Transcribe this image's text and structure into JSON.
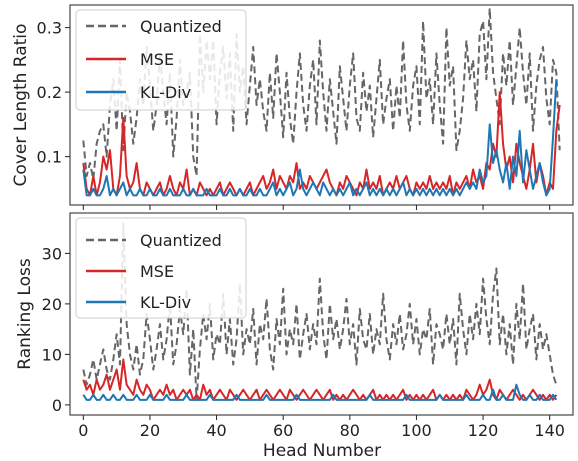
{
  "chart_data": [
    {
      "type": "line",
      "ylabel": "Cover Length Ratio",
      "xlabel": "",
      "xlim": [
        -4,
        147
      ],
      "ylim": [
        0.025,
        0.335
      ],
      "xticks": [
        0,
        20,
        40,
        60,
        80,
        100,
        120,
        140
      ],
      "xtick_labels": [
        "0",
        "20",
        "40",
        "60",
        "80",
        "100",
        "120",
        "140"
      ],
      "yticks": [
        0.1,
        0.2,
        0.3
      ],
      "ytick_labels": [
        "0.1",
        "0.2",
        "0.3"
      ],
      "legend_position": "upper-left",
      "series": [
        {
          "name": "Quantized",
          "color": "#666666",
          "style": "dashed",
          "values": [
            0.125,
            0.07,
            0.09,
            0.065,
            0.12,
            0.14,
            0.15,
            0.1,
            0.18,
            0.22,
            0.14,
            0.25,
            0.11,
            0.2,
            0.17,
            0.12,
            0.16,
            0.22,
            0.18,
            0.27,
            0.21,
            0.14,
            0.18,
            0.26,
            0.2,
            0.15,
            0.23,
            0.1,
            0.16,
            0.25,
            0.18,
            0.2,
            0.23,
            0.1,
            0.07,
            0.29,
            0.2,
            0.28,
            0.22,
            0.28,
            0.15,
            0.23,
            0.27,
            0.19,
            0.26,
            0.14,
            0.29,
            0.2,
            0.24,
            0.15,
            0.21,
            0.27,
            0.18,
            0.22,
            0.17,
            0.14,
            0.23,
            0.16,
            0.26,
            0.2,
            0.13,
            0.23,
            0.16,
            0.12,
            0.2,
            0.26,
            0.18,
            0.14,
            0.21,
            0.25,
            0.15,
            0.28,
            0.2,
            0.14,
            0.22,
            0.17,
            0.12,
            0.24,
            0.19,
            0.14,
            0.21,
            0.26,
            0.16,
            0.14,
            0.23,
            0.17,
            0.21,
            0.13,
            0.19,
            0.25,
            0.15,
            0.19,
            0.22,
            0.14,
            0.21,
            0.16,
            0.28,
            0.18,
            0.14,
            0.21,
            0.24,
            0.15,
            0.31,
            0.19,
            0.22,
            0.15,
            0.26,
            0.18,
            0.12,
            0.3,
            0.21,
            0.24,
            0.11,
            0.14,
            0.19,
            0.28,
            0.22,
            0.25,
            0.17,
            0.29,
            0.31,
            0.22,
            0.33,
            0.23,
            0.19,
            0.15,
            0.26,
            0.21,
            0.28,
            0.18,
            0.24,
            0.3,
            0.23,
            0.18,
            0.26,
            0.14,
            0.21,
            0.25,
            0.27,
            0.19,
            0.15,
            0.25,
            0.23,
            0.11
          ]
        },
        {
          "name": "MSE",
          "color": "#d62728",
          "style": "solid",
          "values": [
            0.09,
            0.05,
            0.04,
            0.07,
            0.04,
            0.06,
            0.1,
            0.08,
            0.11,
            0.05,
            0.04,
            0.07,
            0.16,
            0.07,
            0.05,
            0.06,
            0.09,
            0.05,
            0.04,
            0.06,
            0.05,
            0.04,
            0.05,
            0.06,
            0.04,
            0.05,
            0.07,
            0.05,
            0.04,
            0.06,
            0.05,
            0.08,
            0.04,
            0.05,
            0.04,
            0.06,
            0.05,
            0.04,
            0.05,
            0.04,
            0.05,
            0.06,
            0.04,
            0.05,
            0.06,
            0.05,
            0.04,
            0.05,
            0.04,
            0.05,
            0.06,
            0.04,
            0.05,
            0.06,
            0.07,
            0.05,
            0.06,
            0.08,
            0.05,
            0.07,
            0.06,
            0.05,
            0.07,
            0.06,
            0.09,
            0.05,
            0.06,
            0.05,
            0.07,
            0.06,
            0.05,
            0.06,
            0.07,
            0.08,
            0.06,
            0.05,
            0.04,
            0.06,
            0.05,
            0.07,
            0.06,
            0.05,
            0.04,
            0.06,
            0.05,
            0.08,
            0.05,
            0.06,
            0.05,
            0.07,
            0.04,
            0.05,
            0.06,
            0.05,
            0.07,
            0.05,
            0.06,
            0.07,
            0.05,
            0.04,
            0.06,
            0.05,
            0.06,
            0.05,
            0.07,
            0.05,
            0.06,
            0.05,
            0.06,
            0.05,
            0.07,
            0.04,
            0.06,
            0.05,
            0.06,
            0.07,
            0.05,
            0.08,
            0.06,
            0.07,
            0.05,
            0.09,
            0.08,
            0.12,
            0.1,
            0.2,
            0.12,
            0.08,
            0.1,
            0.06,
            0.12,
            0.09,
            0.07,
            0.05,
            0.08,
            0.12,
            0.06,
            0.09,
            0.07,
            0.04,
            0.06,
            0.05,
            0.14,
            0.18
          ]
        },
        {
          "name": "KL-Div",
          "color": "#1f77b4",
          "style": "solid",
          "values": [
            0.08,
            0.04,
            0.04,
            0.05,
            0.04,
            0.04,
            0.05,
            0.07,
            0.04,
            0.05,
            0.04,
            0.05,
            0.06,
            0.04,
            0.05,
            0.04,
            0.04,
            0.05,
            0.04,
            0.04,
            0.05,
            0.04,
            0.04,
            0.05,
            0.04,
            0.04,
            0.05,
            0.04,
            0.04,
            0.04,
            0.05,
            0.04,
            0.04,
            0.05,
            0.04,
            0.04,
            0.04,
            0.05,
            0.04,
            0.04,
            0.04,
            0.05,
            0.04,
            0.04,
            0.05,
            0.04,
            0.04,
            0.05,
            0.04,
            0.04,
            0.05,
            0.04,
            0.04,
            0.05,
            0.04,
            0.04,
            0.05,
            0.06,
            0.04,
            0.05,
            0.04,
            0.05,
            0.06,
            0.04,
            0.05,
            0.08,
            0.05,
            0.04,
            0.05,
            0.06,
            0.05,
            0.04,
            0.06,
            0.05,
            0.04,
            0.05,
            0.04,
            0.05,
            0.04,
            0.05,
            0.06,
            0.04,
            0.05,
            0.04,
            0.05,
            0.06,
            0.04,
            0.05,
            0.04,
            0.05,
            0.04,
            0.05,
            0.04,
            0.05,
            0.04,
            0.05,
            0.06,
            0.04,
            0.05,
            0.04,
            0.05,
            0.04,
            0.05,
            0.04,
            0.05,
            0.04,
            0.05,
            0.04,
            0.05,
            0.04,
            0.05,
            0.04,
            0.05,
            0.04,
            0.05,
            0.06,
            0.05,
            0.06,
            0.05,
            0.08,
            0.06,
            0.07,
            0.15,
            0.09,
            0.11,
            0.08,
            0.06,
            0.09,
            0.05,
            0.1,
            0.07,
            0.14,
            0.06,
            0.11,
            0.08,
            0.05,
            0.07,
            0.09,
            0.06,
            0.04,
            0.05,
            0.13,
            0.22
          ]
        }
      ]
    },
    {
      "type": "line",
      "ylabel": "Ranking Loss",
      "xlabel": "Head Number",
      "xlim": [
        -4,
        147
      ],
      "ylim": [
        -2,
        38
      ],
      "xticks": [
        0,
        20,
        40,
        60,
        80,
        100,
        120,
        140
      ],
      "xtick_labels": [
        "0",
        "20",
        "40",
        "60",
        "80",
        "100",
        "120",
        "140"
      ],
      "yticks": [
        0,
        10,
        20,
        30
      ],
      "ytick_labels": [
        "0",
        "10",
        "20",
        "30"
      ],
      "legend_position": "upper-left",
      "series": [
        {
          "name": "Quantized",
          "color": "#666666",
          "style": "dashed",
          "values": [
            7,
            4,
            6,
            9,
            5,
            8,
            11,
            7,
            5,
            9,
            14,
            8,
            36,
            16,
            10,
            7,
            12,
            6,
            9,
            18,
            13,
            7,
            11,
            16,
            9,
            13,
            20,
            8,
            12,
            19,
            14,
            23,
            6,
            15,
            1,
            11,
            18,
            13,
            20,
            9,
            14,
            12,
            22,
            10,
            17,
            8,
            13,
            24,
            10,
            15,
            12,
            19,
            8,
            16,
            13,
            21,
            11,
            7,
            17,
            12,
            23,
            10,
            15,
            12,
            20,
            9,
            14,
            18,
            11,
            16,
            12,
            25,
            14,
            9,
            20,
            13,
            17,
            11,
            15,
            21,
            12,
            16,
            8,
            19,
            13,
            11,
            18,
            10,
            15,
            12,
            22,
            13,
            9,
            16,
            12,
            18,
            11,
            14,
            20,
            12,
            17,
            10,
            15,
            13,
            19,
            8,
            16,
            14,
            11,
            18,
            12,
            17,
            8,
            22,
            15,
            10,
            18,
            13,
            20,
            14,
            25,
            17,
            12,
            22,
            27,
            12,
            18,
            10,
            16,
            8,
            20,
            13,
            24,
            11,
            15,
            18,
            9,
            16,
            11,
            14,
            10,
            6,
            4
          ]
        },
        {
          "name": "MSE",
          "color": "#d62728",
          "style": "solid",
          "values": [
            5,
            3,
            4,
            2,
            5,
            3,
            4,
            6,
            3,
            5,
            7,
            3,
            9,
            4,
            3,
            2,
            5,
            3,
            2,
            4,
            3,
            1,
            2,
            3,
            2,
            4,
            2,
            3,
            1,
            2,
            3,
            2,
            3,
            1,
            2,
            1,
            4,
            2,
            3,
            1,
            2,
            3,
            2,
            1,
            3,
            2,
            1,
            2,
            3,
            2,
            1,
            2,
            3,
            1,
            2,
            3,
            2,
            1,
            2,
            3,
            2,
            1,
            3,
            2,
            1,
            2,
            3,
            2,
            1,
            2,
            3,
            2,
            1,
            2,
            3,
            1,
            2,
            1,
            2,
            1,
            2,
            3,
            2,
            1,
            2,
            1,
            2,
            3,
            1,
            2,
            1,
            2,
            1,
            2,
            1,
            2,
            3,
            1,
            2,
            1,
            2,
            1,
            2,
            1,
            2,
            3,
            1,
            2,
            1,
            2,
            1,
            2,
            1,
            2,
            1,
            3,
            2,
            1,
            2,
            4,
            2,
            3,
            5,
            2,
            1,
            3,
            2,
            1,
            2,
            3,
            2,
            1,
            2,
            1,
            2,
            3,
            2,
            1,
            2,
            1,
            2,
            1,
            2
          ]
        },
        {
          "name": "KL-Div",
          "color": "#1f77b4",
          "style": "solid",
          "values": [
            2,
            1,
            1,
            2,
            1,
            1,
            2,
            1,
            1,
            2,
            1,
            1,
            2,
            1,
            1,
            1,
            2,
            1,
            1,
            1,
            2,
            1,
            1,
            1,
            1,
            2,
            1,
            1,
            1,
            1,
            1,
            2,
            1,
            1,
            1,
            1,
            1,
            1,
            2,
            1,
            1,
            1,
            1,
            1,
            1,
            1,
            2,
            1,
            1,
            1,
            1,
            1,
            1,
            1,
            1,
            2,
            1,
            1,
            1,
            1,
            1,
            1,
            1,
            1,
            2,
            1,
            1,
            1,
            1,
            1,
            1,
            1,
            1,
            1,
            1,
            2,
            1,
            1,
            1,
            1,
            1,
            1,
            1,
            1,
            1,
            1,
            2,
            1,
            1,
            1,
            1,
            1,
            1,
            1,
            1,
            1,
            1,
            2,
            1,
            1,
            1,
            1,
            1,
            1,
            1,
            1,
            1,
            2,
            1,
            1,
            1,
            1,
            1,
            1,
            1,
            2,
            1,
            1,
            1,
            1,
            2,
            1,
            1,
            3,
            1,
            1,
            2,
            1,
            1,
            1,
            4,
            2,
            1,
            1,
            2,
            1,
            1,
            2,
            1,
            1,
            1,
            2,
            1
          ]
        }
      ]
    }
  ]
}
